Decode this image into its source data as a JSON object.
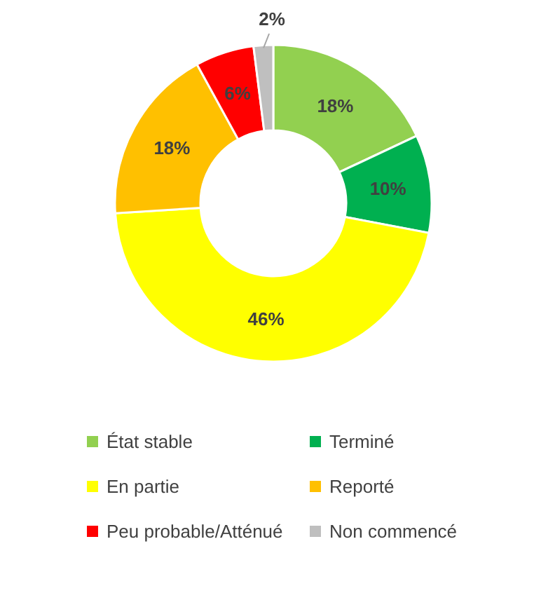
{
  "chart_data": {
    "type": "donut",
    "categories": [
      "État stable",
      "Terminé",
      "En partie",
      "Reporté",
      "Peu probable/Atténué",
      "Non commencé"
    ],
    "values": [
      18,
      10,
      46,
      18,
      6,
      2
    ],
    "colors": [
      "#92d050",
      "#00b050",
      "#ffff00",
      "#ffc000",
      "#ff0000",
      "#bfbfbf"
    ],
    "value_labels": [
      "18%",
      "10%",
      "46%",
      "18%",
      "6%",
      "2%"
    ],
    "legend": "bottom"
  }
}
